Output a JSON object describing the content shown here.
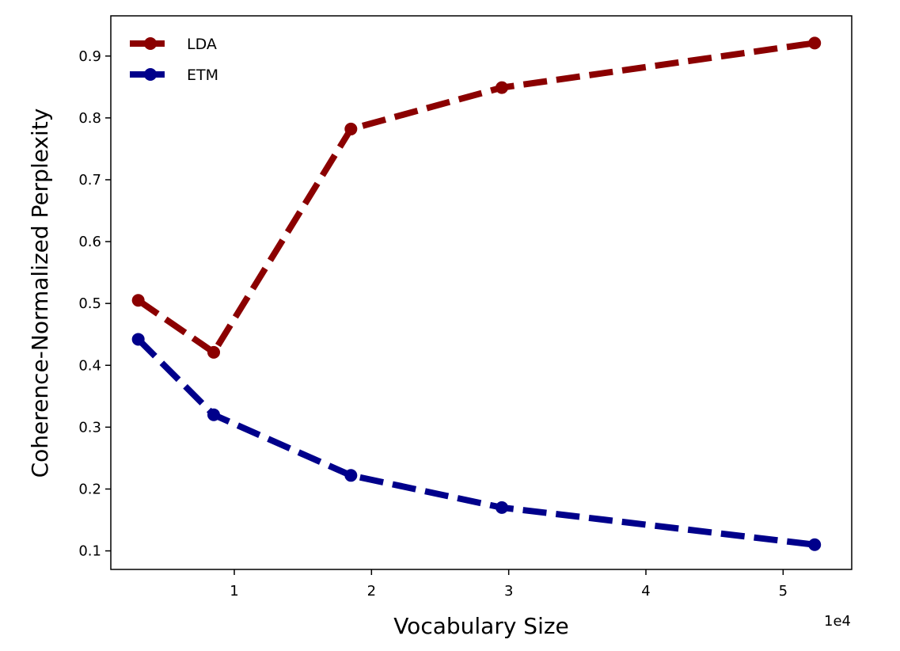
{
  "chart_data": {
    "type": "line",
    "title": "",
    "xlabel": "Vocabulary Size",
    "ylabel": "Coherence-Normalized Perplexity",
    "x_offset_label": "1e4",
    "x_scale_factor": 10000,
    "xlim": [
      0.1,
      5.5
    ],
    "ylim": [
      0.07,
      0.965
    ],
    "x_ticks": [
      1,
      2,
      3,
      4,
      5
    ],
    "y_ticks": [
      0.1,
      0.2,
      0.3,
      0.4,
      0.5,
      0.6,
      0.7,
      0.8,
      0.9
    ],
    "grid": false,
    "legend_position": "top-left",
    "x": [
      0.3,
      0.85,
      1.85,
      2.95,
      5.23
    ],
    "series": [
      {
        "name": "LDA",
        "color": "#8b0000",
        "values": [
          0.505,
          0.421,
          0.782,
          0.849,
          0.921
        ]
      },
      {
        "name": "ETM",
        "color": "#00008b",
        "values": [
          0.442,
          0.32,
          0.222,
          0.17,
          0.11
        ]
      }
    ]
  }
}
